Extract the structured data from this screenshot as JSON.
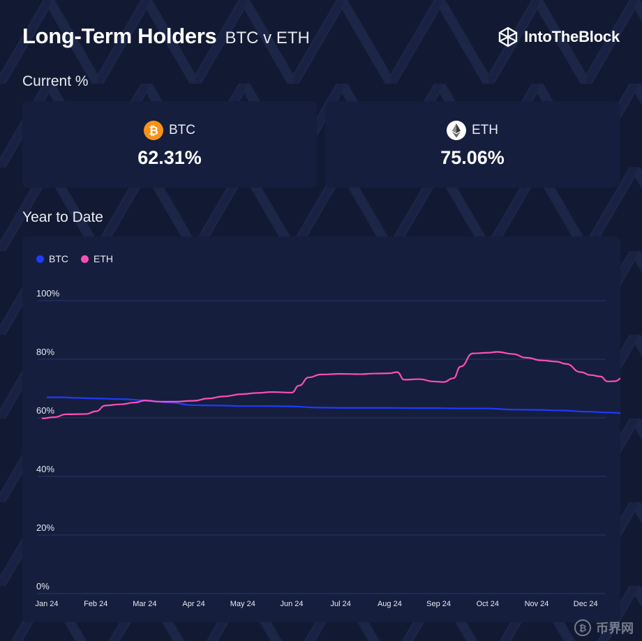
{
  "header": {
    "title": "Long-Term Holders",
    "subtitle": "BTC v ETH",
    "brand": "IntoTheBlock"
  },
  "current": {
    "label": "Current %",
    "cards": [
      {
        "name": "BTC",
        "value": "62.31%",
        "icon": "bitcoin-icon",
        "color": "#f7931a"
      },
      {
        "name": "ETH",
        "value": "75.06%",
        "icon": "ethereum-icon",
        "color": "#ffffff"
      }
    ]
  },
  "ytd": {
    "label": "Year to Date"
  },
  "watermark": {
    "text": "币界网"
  },
  "chart_data": {
    "type": "line",
    "x": [
      "Jan 24",
      "Jan 24",
      "Feb 24",
      "Feb 24",
      "Mar 24",
      "Mar 24",
      "Apr 24",
      "Apr 24",
      "May 24",
      "May 24",
      "Jun 24",
      "Jun 24",
      "Jul 24",
      "Jul 24",
      "Aug 24",
      "Aug 24",
      "Sep 24",
      "Sep 24",
      "Oct 24",
      "Oct 24",
      "Nov 24",
      "Nov 24",
      "Dec 24",
      "Dec 24"
    ],
    "x_ticks": [
      "Jan 24",
      "Feb 24",
      "Mar 24",
      "Apr 24",
      "May 24",
      "Jun 24",
      "Jul 24",
      "Aug 24",
      "Sep 24",
      "Oct 24",
      "Nov 24",
      "Dec 24"
    ],
    "x_mid": [
      0,
      1.0,
      2.0,
      3.0,
      4.0,
      5.0,
      6.0,
      7.0,
      8.0,
      9.0,
      10.0,
      11.0
    ],
    "series": [
      {
        "name": "BTC",
        "color": "#1f3bff",
        "points": [
          [
            0.0,
            67.0
          ],
          [
            0.3,
            67.0
          ],
          [
            0.6,
            66.8
          ],
          [
            1.0,
            66.6
          ],
          [
            1.5,
            66.4
          ],
          [
            2.0,
            66.0
          ],
          [
            2.5,
            65.2
          ],
          [
            3.0,
            64.3
          ],
          [
            3.5,
            64.2
          ],
          [
            4.0,
            64.0
          ],
          [
            4.5,
            64.0
          ],
          [
            5.0,
            63.9
          ],
          [
            5.5,
            63.5
          ],
          [
            6.0,
            63.4
          ],
          [
            6.5,
            63.4
          ],
          [
            7.0,
            63.4
          ],
          [
            7.5,
            63.3
          ],
          [
            8.0,
            63.3
          ],
          [
            8.5,
            63.2
          ],
          [
            9.0,
            63.2
          ],
          [
            9.5,
            62.8
          ],
          [
            10.0,
            62.7
          ],
          [
            10.5,
            62.5
          ],
          [
            11.0,
            62.1
          ],
          [
            11.5,
            61.8
          ],
          [
            11.75,
            61.6
          ]
        ]
      },
      {
        "name": "ETH",
        "color": "#ff4fb6",
        "points": [
          [
            -0.1,
            59.8
          ],
          [
            0.15,
            60.2
          ],
          [
            0.4,
            61.2
          ],
          [
            0.8,
            61.3
          ],
          [
            1.0,
            62.2
          ],
          [
            1.2,
            64.2
          ],
          [
            1.5,
            64.6
          ],
          [
            1.8,
            65.2
          ],
          [
            2.0,
            65.9
          ],
          [
            2.3,
            65.5
          ],
          [
            2.6,
            65.5
          ],
          [
            3.0,
            65.8
          ],
          [
            3.3,
            66.6
          ],
          [
            3.6,
            67.3
          ],
          [
            4.0,
            68.1
          ],
          [
            4.3,
            68.5
          ],
          [
            4.6,
            68.8
          ],
          [
            5.0,
            68.6
          ],
          [
            5.15,
            71.0
          ],
          [
            5.35,
            73.8
          ],
          [
            5.6,
            74.8
          ],
          [
            6.0,
            75.0
          ],
          [
            6.4,
            74.9
          ],
          [
            6.7,
            75.1
          ],
          [
            7.0,
            75.2
          ],
          [
            7.15,
            75.6
          ],
          [
            7.3,
            73.0
          ],
          [
            7.6,
            73.2
          ],
          [
            7.9,
            72.4
          ],
          [
            8.1,
            72.2
          ],
          [
            8.3,
            73.5
          ],
          [
            8.45,
            77.5
          ],
          [
            8.7,
            82.0
          ],
          [
            9.0,
            82.2
          ],
          [
            9.2,
            82.5
          ],
          [
            9.5,
            81.8
          ],
          [
            9.8,
            80.5
          ],
          [
            10.1,
            79.6
          ],
          [
            10.4,
            79.2
          ],
          [
            10.6,
            78.4
          ],
          [
            10.9,
            75.6
          ],
          [
            11.1,
            74.6
          ],
          [
            11.3,
            74.1
          ],
          [
            11.45,
            72.4
          ],
          [
            11.6,
            72.5
          ],
          [
            11.75,
            73.6
          ]
        ]
      }
    ],
    "yticks": [
      "0%",
      "20%",
      "40%",
      "60%",
      "80%",
      "100%"
    ],
    "ylim": [
      0,
      100
    ],
    "legend": "top-left",
    "grid": true
  }
}
